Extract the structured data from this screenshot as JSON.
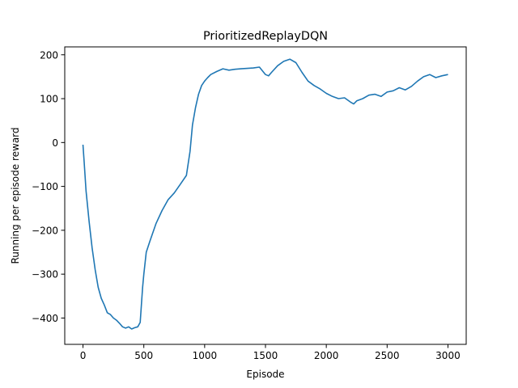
{
  "chart_data": {
    "type": "line",
    "title": "PrioritizedReplayDQN",
    "xlabel": "Episode",
    "ylabel": "Running per episode reward",
    "xlim": [
      -150,
      3150
    ],
    "ylim": [
      -460,
      218
    ],
    "xticks": [
      0,
      500,
      1000,
      1500,
      2000,
      2500,
      3000
    ],
    "xtick_labels": [
      "0",
      "500",
      "1000",
      "1500",
      "2000",
      "2500",
      "3000"
    ],
    "yticks": [
      -400,
      -300,
      -200,
      -100,
      0,
      100,
      200
    ],
    "ytick_labels": [
      "−400",
      "−300",
      "−200",
      "−100",
      "0",
      "100",
      "200"
    ],
    "grid": false,
    "series": [
      {
        "color": "#1f77b4",
        "x": [
          0,
          10,
          25,
          50,
          75,
          100,
          125,
          150,
          175,
          200,
          225,
          250,
          275,
          300,
          325,
          350,
          375,
          400,
          425,
          450,
          470,
          490,
          500,
          520,
          550,
          600,
          650,
          700,
          750,
          800,
          850,
          880,
          900,
          925,
          950,
          975,
          1000,
          1025,
          1050,
          1100,
          1150,
          1200,
          1250,
          1300,
          1350,
          1400,
          1450,
          1500,
          1525,
          1550,
          1600,
          1650,
          1700,
          1750,
          1800,
          1850,
          1900,
          1950,
          2000,
          2050,
          2100,
          2150,
          2200,
          2225,
          2250,
          2300,
          2350,
          2400,
          2450,
          2500,
          2550,
          2600,
          2650,
          2700,
          2750,
          2800,
          2850,
          2900,
          2950,
          3000
        ],
        "y": [
          -5,
          -45,
          -110,
          -180,
          -240,
          -290,
          -330,
          -355,
          -370,
          -388,
          -392,
          -400,
          -405,
          -412,
          -420,
          -423,
          -420,
          -425,
          -422,
          -420,
          -410,
          -330,
          -300,
          -250,
          -225,
          -185,
          -155,
          -130,
          -115,
          -95,
          -75,
          -20,
          40,
          80,
          110,
          130,
          140,
          148,
          155,
          162,
          168,
          165,
          167,
          168,
          169,
          170,
          172,
          155,
          152,
          160,
          175,
          185,
          190,
          182,
          160,
          140,
          130,
          122,
          112,
          105,
          100,
          102,
          92,
          88,
          95,
          100,
          108,
          110,
          105,
          115,
          118,
          125,
          120,
          128,
          140,
          150,
          155,
          148,
          152,
          155
        ]
      }
    ]
  }
}
